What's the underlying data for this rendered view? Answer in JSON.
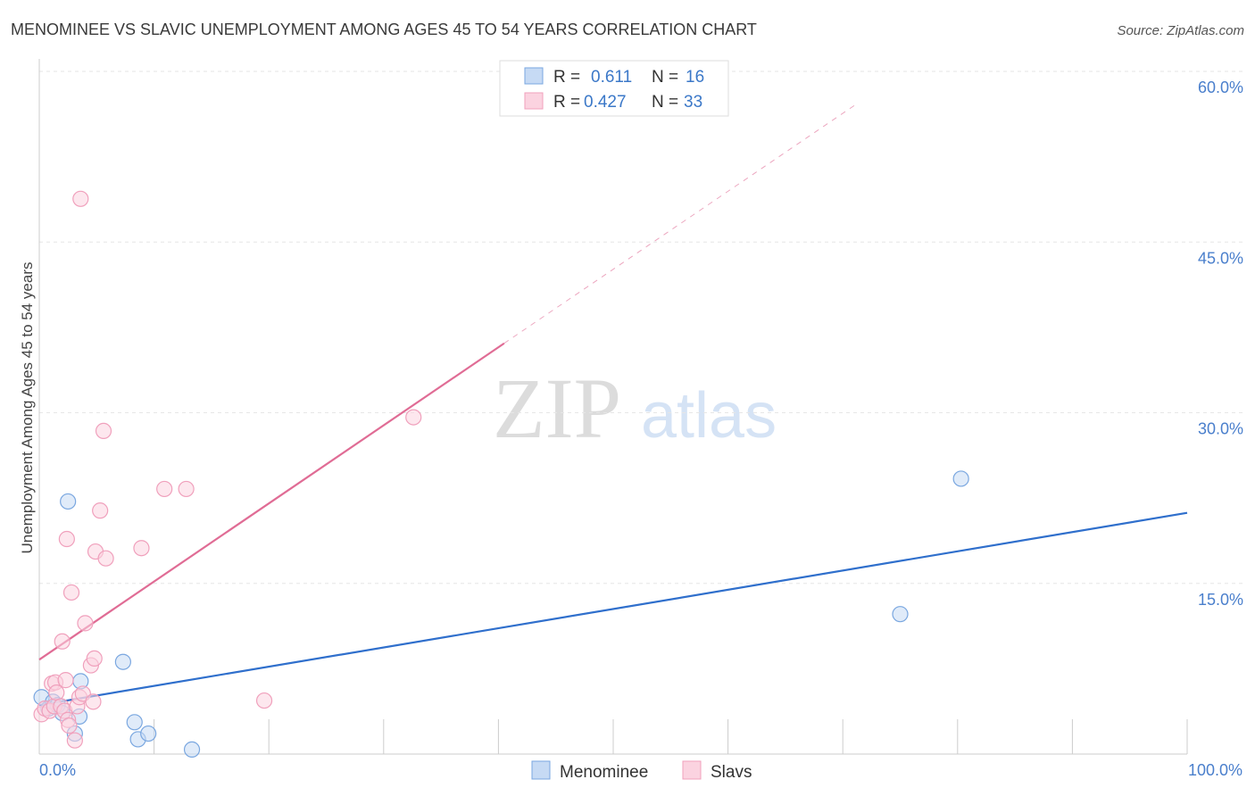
{
  "chart_data": {
    "type": "scatter",
    "title": "MENOMINEE VS SLAVIC UNEMPLOYMENT AMONG AGES 45 TO 54 YEARS CORRELATION CHART",
    "source": "Source: ZipAtlas.com",
    "xlabel": "",
    "ylabel": "Unemployment Among Ages 45 to 54 years",
    "xlim": [
      0,
      100
    ],
    "ylim": [
      0,
      60
    ],
    "x_tick_labels": {
      "min": "0.0%",
      "max": "100.0%"
    },
    "y_ticks": [
      {
        "value": 15,
        "label": "15.0%"
      },
      {
        "value": 30,
        "label": "30.0%"
      },
      {
        "value": 45,
        "label": "45.0%"
      },
      {
        "value": 60,
        "label": "60.0%"
      }
    ],
    "grid": true,
    "watermark": {
      "zip": "ZIP",
      "atlas": "atlas"
    },
    "legend": {
      "placement": "top-center",
      "entries": [
        {
          "r_label": "R =",
          "r_value": "0.611",
          "n_label": "N =",
          "n_value": "16"
        },
        {
          "r_label": "R =",
          "r_value": "0.427",
          "n_label": "N =",
          "n_value": "33"
        }
      ]
    },
    "series": [
      {
        "name": "Menominee",
        "color": "#7aa7e0",
        "fill": "#c6daf4",
        "line_color": "#2f6fcc",
        "trend": {
          "x0": 0,
          "y0": 4.3,
          "x1": 100,
          "y1": 21.2,
          "dashed_to": null
        },
        "points": [
          {
            "x": 0.2,
            "y": 5.0
          },
          {
            "x": 0.8,
            "y": 4.0
          },
          {
            "x": 1.2,
            "y": 4.6
          },
          {
            "x": 1.6,
            "y": 4.3
          },
          {
            "x": 2.0,
            "y": 3.6
          },
          {
            "x": 2.5,
            "y": 22.2
          },
          {
            "x": 3.1,
            "y": 1.8
          },
          {
            "x": 3.5,
            "y": 3.3
          },
          {
            "x": 3.6,
            "y": 6.4
          },
          {
            "x": 7.3,
            "y": 8.1
          },
          {
            "x": 8.3,
            "y": 2.8
          },
          {
            "x": 8.6,
            "y": 1.3
          },
          {
            "x": 9.5,
            "y": 1.8
          },
          {
            "x": 13.3,
            "y": 0.4
          },
          {
            "x": 75.0,
            "y": 12.3
          },
          {
            "x": 80.3,
            "y": 24.2
          }
        ]
      },
      {
        "name": "Slavs",
        "color": "#f0a0bc",
        "fill": "#fbd3e0",
        "line_color": "#e06c95",
        "trend": {
          "x0": 0,
          "y0": 8.3,
          "x1": 40.5,
          "y1": 36.1,
          "dashed_to": {
            "x": 71.0,
            "y": 57.0
          }
        },
        "points": [
          {
            "x": 0.2,
            "y": 3.5
          },
          {
            "x": 0.5,
            "y": 4.0
          },
          {
            "x": 0.9,
            "y": 3.8
          },
          {
            "x": 1.1,
            "y": 6.2
          },
          {
            "x": 1.3,
            "y": 4.2
          },
          {
            "x": 1.4,
            "y": 6.3
          },
          {
            "x": 1.5,
            "y": 5.4
          },
          {
            "x": 1.9,
            "y": 4.2
          },
          {
            "x": 2.0,
            "y": 9.9
          },
          {
            "x": 2.2,
            "y": 3.8
          },
          {
            "x": 2.3,
            "y": 6.5
          },
          {
            "x": 2.4,
            "y": 18.9
          },
          {
            "x": 2.5,
            "y": 3.0
          },
          {
            "x": 2.6,
            "y": 2.5
          },
          {
            "x": 2.8,
            "y": 14.2
          },
          {
            "x": 3.1,
            "y": 1.2
          },
          {
            "x": 3.3,
            "y": 4.2
          },
          {
            "x": 3.5,
            "y": 5.0
          },
          {
            "x": 3.6,
            "y": 48.8
          },
          {
            "x": 3.8,
            "y": 5.3
          },
          {
            "x": 4.0,
            "y": 11.5
          },
          {
            "x": 4.5,
            "y": 7.8
          },
          {
            "x": 4.7,
            "y": 4.6
          },
          {
            "x": 4.8,
            "y": 8.4
          },
          {
            "x": 4.9,
            "y": 17.8
          },
          {
            "x": 5.3,
            "y": 21.4
          },
          {
            "x": 5.6,
            "y": 28.4
          },
          {
            "x": 5.8,
            "y": 17.2
          },
          {
            "x": 8.9,
            "y": 18.1
          },
          {
            "x": 10.9,
            "y": 23.3
          },
          {
            "x": 12.8,
            "y": 23.3
          },
          {
            "x": 19.6,
            "y": 4.7
          },
          {
            "x": 32.6,
            "y": 29.6
          }
        ]
      }
    ]
  }
}
